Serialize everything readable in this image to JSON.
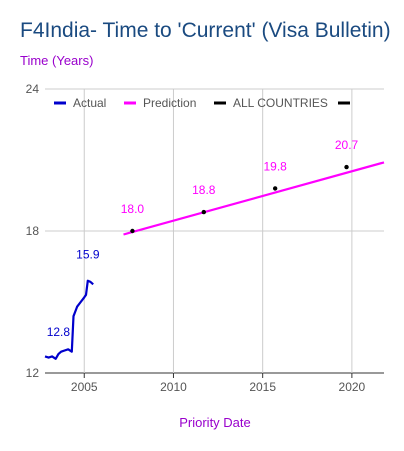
{
  "chart_data": {
    "type": "line",
    "title": "F4India- Time to 'Current' (Visa Bulletin)",
    "ylabel": "Time (Years)",
    "xlabel": "Priority Date",
    "xlim": [
      2002.8,
      2021.8
    ],
    "ylim": [
      12,
      24
    ],
    "x_ticks": [
      2005,
      2010,
      2015,
      2020
    ],
    "y_ticks": [
      12,
      18,
      24
    ],
    "grid": true,
    "legend_position": "top",
    "legend": [
      "Actual",
      "Prediction",
      "ALL COUNTRIES",
      ""
    ],
    "colors": {
      "actual": "#0000cc",
      "prediction": "#ff00ff",
      "all_countries": "#000000",
      "title": "#1a4a80",
      "axis_label": "#9900cc"
    },
    "series": [
      {
        "name": "Actual",
        "x": [
          2002.8,
          2003.0,
          2003.2,
          2003.4,
          2003.55,
          2003.7,
          2003.9,
          2004.1,
          2004.3,
          2004.4,
          2004.5,
          2004.6,
          2004.8,
          2005.0,
          2005.1,
          2005.2,
          2005.35,
          2005.5
        ],
        "y": [
          12.7,
          12.65,
          12.7,
          12.6,
          12.8,
          12.9,
          12.95,
          13.0,
          12.9,
          14.4,
          14.6,
          14.8,
          15.0,
          15.2,
          15.3,
          15.9,
          15.85,
          15.75
        ]
      },
      {
        "name": "Prediction",
        "x": [
          2007.2,
          2021.8
        ],
        "y": [
          17.85,
          20.9
        ]
      },
      {
        "name": "ALL COUNTRIES",
        "x": [
          2007.7,
          2011.7,
          2015.7,
          2019.7
        ],
        "y": [
          18.0,
          18.8,
          19.8,
          20.7
        ]
      }
    ],
    "annotations": [
      {
        "text": "15.9",
        "x": 2005.2,
        "y": 15.9,
        "color": "#0000cc"
      },
      {
        "text": "12.8",
        "x": 2003.55,
        "y": 12.8,
        "color": "#0000cc"
      },
      {
        "text": "18.0",
        "x": 2007.7,
        "y": 18.0,
        "color": "#ff00ff"
      },
      {
        "text": "18.8",
        "x": 2011.7,
        "y": 18.8,
        "color": "#ff00ff"
      },
      {
        "text": "19.8",
        "x": 2015.7,
        "y": 19.8,
        "color": "#ff00ff"
      },
      {
        "text": "20.7",
        "x": 2019.7,
        "y": 20.7,
        "color": "#ff00ff"
      }
    ]
  }
}
